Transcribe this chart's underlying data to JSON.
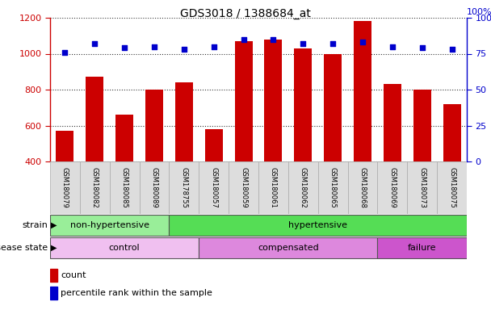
{
  "title": "GDS3018 / 1388684_at",
  "samples": [
    "GSM180079",
    "GSM180082",
    "GSM180085",
    "GSM180089",
    "GSM178755",
    "GSM180057",
    "GSM180059",
    "GSM180061",
    "GSM180062",
    "GSM180065",
    "GSM180068",
    "GSM180069",
    "GSM180073",
    "GSM180075"
  ],
  "counts": [
    570,
    870,
    660,
    800,
    840,
    580,
    1070,
    1080,
    1030,
    1000,
    1180,
    830,
    800,
    720
  ],
  "percentile_ranks": [
    76,
    82,
    79,
    80,
    78,
    80,
    85,
    85,
    82,
    82,
    83,
    80,
    79,
    78
  ],
  "ylim_left": [
    400,
    1200
  ],
  "ylim_right": [
    0,
    100
  ],
  "yticks_left": [
    400,
    600,
    800,
    1000,
    1200
  ],
  "yticks_right": [
    0,
    25,
    50,
    75,
    100
  ],
  "bar_color": "#cc0000",
  "dot_color": "#0000cc",
  "strain_groups": [
    {
      "label": "non-hypertensive",
      "start": 0,
      "end": 4,
      "color": "#99ee99"
    },
    {
      "label": "hypertensive",
      "start": 4,
      "end": 14,
      "color": "#55dd55"
    }
  ],
  "disease_groups": [
    {
      "label": "control",
      "start": 0,
      "end": 5,
      "color": "#f0c0f0"
    },
    {
      "label": "compensated",
      "start": 5,
      "end": 11,
      "color": "#dd88dd"
    },
    {
      "label": "failure",
      "start": 11,
      "end": 14,
      "color": "#cc55cc"
    }
  ],
  "left_axis_color": "#cc0000",
  "right_axis_color": "#0000cc",
  "bg_color": "#ffffff"
}
